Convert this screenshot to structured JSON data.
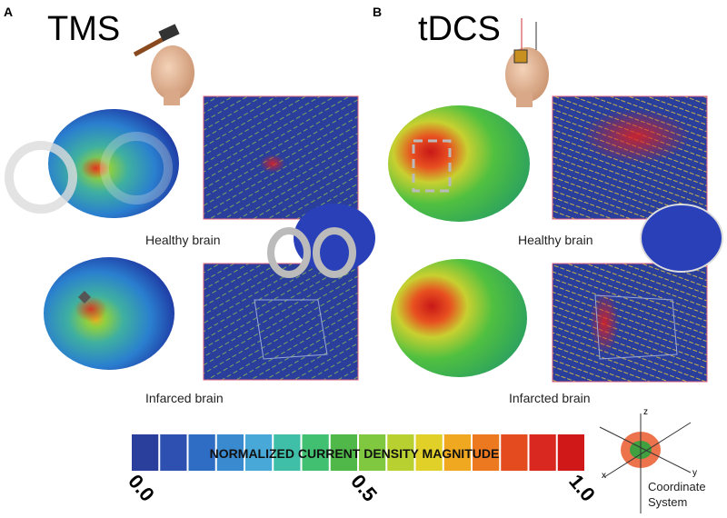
{
  "panels": [
    {
      "letter": "A",
      "title": "TMS",
      "top_label": "Healthy brain",
      "bottom_label": "Infarced brain"
    },
    {
      "letter": "B",
      "title": "tDCS",
      "top_label": "Healthy brain",
      "bottom_label": "Infarcted brain"
    }
  ],
  "colorbar": {
    "label": "NORMALIZED CURRENT DENSITY MAGNITUDE",
    "ticks": [
      "0.0",
      "0.5",
      "1.0"
    ]
  },
  "coordinate_system": {
    "label": "Coordinate System",
    "axes": [
      "z",
      "x",
      "y"
    ]
  }
}
